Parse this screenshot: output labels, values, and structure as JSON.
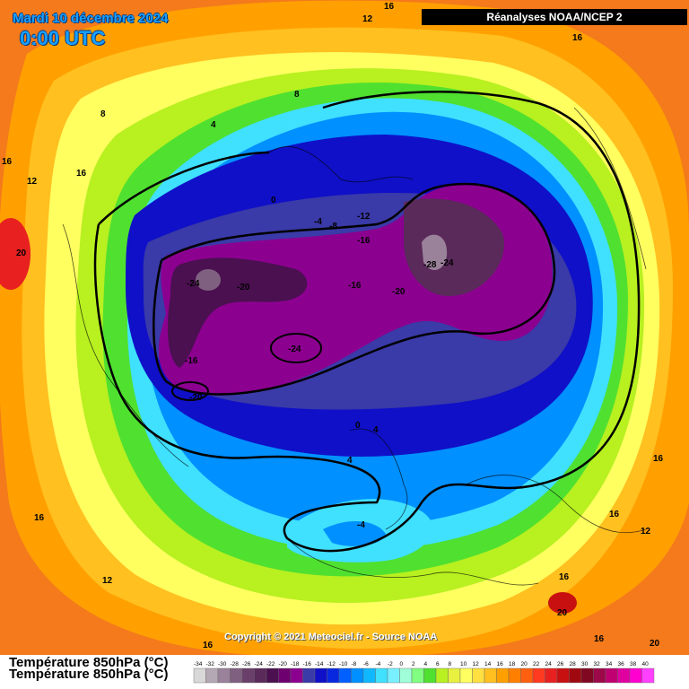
{
  "header": {
    "date": "Mardi 10 décembre 2024",
    "time": "0:00 UTC",
    "source": "Réanalyses NOAA/NCEP 2"
  },
  "footer": {
    "copyright": "Copyright © 2021 Meteociel.fr - Source NOAA",
    "title": "Température 850hPa (°C)"
  },
  "legend": {
    "ticks": [
      "-34",
      "-32",
      "-30",
      "-28",
      "-26",
      "-24",
      "-22",
      "-20",
      "-18",
      "-16",
      "-14",
      "-12",
      "-10",
      "-8",
      "-6",
      "-4",
      "-2",
      "0",
      "2",
      "4",
      "6",
      "8",
      "10",
      "12",
      "14",
      "16",
      "18",
      "20",
      "22",
      "24",
      "26",
      "28",
      "30",
      "32",
      "34",
      "36",
      "38",
      "40"
    ],
    "colors": [
      "#d8d8d8",
      "#b4a8b4",
      "#9a829a",
      "#806080",
      "#6a406a",
      "#5a2a5a",
      "#4a1050",
      "#6e0070",
      "#8c0090",
      "#3a3aa8",
      "#1010c8",
      "#0828e0",
      "#0060ff",
      "#0090ff",
      "#10b8ff",
      "#40e0ff",
      "#78f0ff",
      "#a0ffd8",
      "#80ff80",
      "#50e030",
      "#b8f020",
      "#e8f040",
      "#ffff60",
      "#ffe040",
      "#ffc020",
      "#ffa000",
      "#ff8000",
      "#ff6010",
      "#ff3a20",
      "#e82020",
      "#c81010",
      "#a00810",
      "#800820",
      "#9c0848",
      "#c00070",
      "#e000a0",
      "#ff00d0",
      "#ff40ff"
    ]
  },
  "contour_labels": [
    {
      "text": "16"
    },
    {
      "text": "12"
    },
    {
      "text": "16"
    },
    {
      "text": "8"
    },
    {
      "text": "8"
    },
    {
      "text": "4"
    },
    {
      "text": "16"
    },
    {
      "text": "12"
    },
    {
      "text": "16"
    },
    {
      "text": "20"
    },
    {
      "text": "0"
    },
    {
      "text": "-4"
    },
    {
      "text": "-8"
    },
    {
      "text": "-12"
    },
    {
      "text": "-16"
    },
    {
      "text": "-28"
    },
    {
      "text": "-24"
    },
    {
      "text": "-24"
    },
    {
      "text": "-20"
    },
    {
      "text": "-16"
    },
    {
      "text": "-20"
    },
    {
      "text": "-24"
    },
    {
      "text": "-16"
    },
    {
      "text": "-20"
    },
    {
      "text": "0"
    },
    {
      "text": "4"
    },
    {
      "text": "4"
    },
    {
      "text": "-4"
    },
    {
      "text": "16"
    },
    {
      "text": "16"
    },
    {
      "text": "12"
    },
    {
      "text": "12"
    },
    {
      "text": "16"
    },
    {
      "text": "16"
    },
    {
      "text": "20"
    },
    {
      "text": "16"
    },
    {
      "text": "16"
    },
    {
      "text": "20"
    }
  ]
}
